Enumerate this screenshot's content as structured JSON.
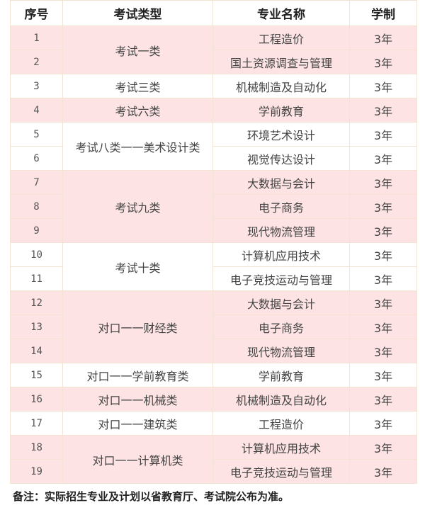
{
  "headers": [
    "序号",
    "考试类型",
    "专业名称",
    "学制"
  ],
  "rows": [
    {
      "no": "1",
      "type": "考试一类",
      "span": 2,
      "major": "工程造价",
      "years": "3年",
      "pink": true
    },
    {
      "no": "2",
      "major": "国土资源调查与管理",
      "years": "3年",
      "pink": true
    },
    {
      "no": "3",
      "type": "考试三类",
      "span": 1,
      "major": "机械制造及自动化",
      "years": "3年",
      "pink": false
    },
    {
      "no": "4",
      "type": "考试六类",
      "span": 1,
      "major": "学前教育",
      "years": "3年",
      "pink": true
    },
    {
      "no": "5",
      "type": "考试八类一一美术设计类",
      "span": 2,
      "major": "环境艺术设计",
      "years": "3年",
      "pink": false
    },
    {
      "no": "6",
      "major": "视觉传达设计",
      "years": "3年",
      "pink": false
    },
    {
      "no": "7",
      "type": "考试九类",
      "span": 3,
      "major": "大数据与会计",
      "years": "3年",
      "pink": true
    },
    {
      "no": "8",
      "major": "电子商务",
      "years": "3年",
      "pink": true
    },
    {
      "no": "9",
      "major": "现代物流管理",
      "years": "3年",
      "pink": true
    },
    {
      "no": "10",
      "type": "考试十类",
      "span": 2,
      "major": "计算机应用技术",
      "years": "3年",
      "pink": false
    },
    {
      "no": "11",
      "major": "电子竞技运动与管理",
      "years": "3年",
      "pink": false
    },
    {
      "no": "12",
      "type": "对口一一财经类",
      "span": 3,
      "major": "大数据与会计",
      "years": "3年",
      "pink": true
    },
    {
      "no": "13",
      "major": "电子商务",
      "years": "3年",
      "pink": true
    },
    {
      "no": "14",
      "major": "现代物流管理",
      "years": "3年",
      "pink": true
    },
    {
      "no": "15",
      "type": "对口一一学前教育类",
      "span": 1,
      "major": "学前教育",
      "years": "3年",
      "pink": false
    },
    {
      "no": "16",
      "type": "对口一一机械类",
      "span": 1,
      "major": "机械制造及自动化",
      "years": "3年",
      "pink": true
    },
    {
      "no": "17",
      "type": "对口一一建筑类",
      "span": 1,
      "major": "工程造价",
      "years": "3年",
      "pink": false
    },
    {
      "no": "18",
      "type": "对口一一计算机类",
      "span": 2,
      "major": "计算机应用技术",
      "years": "3年",
      "pink": true
    },
    {
      "no": "19",
      "major": "电子竞技运动与管理",
      "years": "3年",
      "pink": true
    }
  ],
  "note": "备注：实际招生专业及计划以省教育厅、考试院公布为准。",
  "colors": {
    "pink_row": "#fde3e3",
    "border": "#f3e3d3"
  }
}
